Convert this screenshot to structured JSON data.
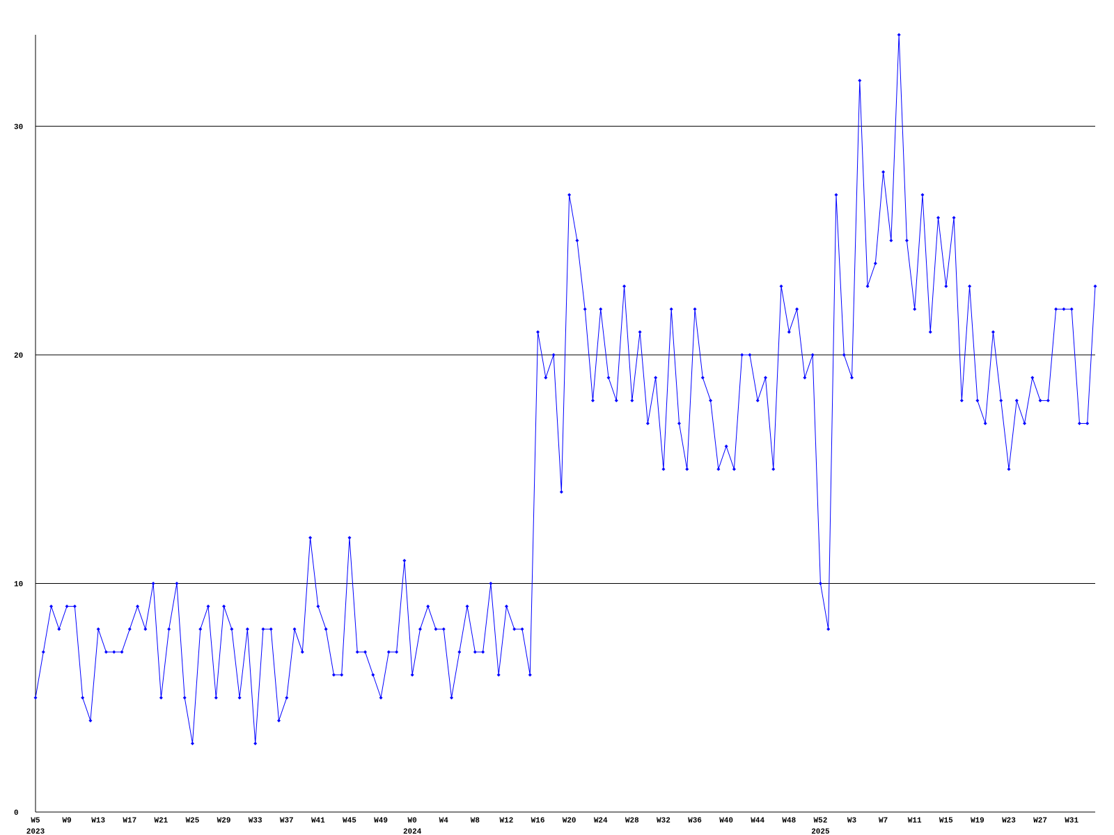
{
  "chart_data": {
    "type": "line",
    "categories": [
      "W5",
      null,
      null,
      null,
      "W9",
      null,
      null,
      null,
      "W13",
      null,
      null,
      null,
      "W17",
      null,
      null,
      null,
      "W21",
      null,
      null,
      null,
      "W25",
      null,
      null,
      null,
      "W29",
      null,
      null,
      null,
      "W33",
      null,
      null,
      null,
      "W37",
      null,
      null,
      null,
      "W41",
      null,
      null,
      null,
      "W45",
      null,
      null,
      null,
      "W49",
      null,
      null,
      null,
      "W0",
      null,
      null,
      null,
      "W4",
      null,
      null,
      null,
      "W8",
      null,
      null,
      null,
      "W12",
      null,
      null,
      null,
      "W16",
      null,
      null,
      null,
      "W20",
      null,
      null,
      null,
      "W24",
      null,
      null,
      null,
      "W28",
      null,
      null,
      null,
      "W32",
      null,
      null,
      null,
      "W36",
      null,
      null,
      null,
      "W40",
      null,
      null,
      null,
      "W44",
      null,
      null,
      null,
      "W48",
      null,
      null,
      null,
      "W52",
      null,
      null,
      null,
      "W3",
      null,
      null,
      null,
      "W7",
      null,
      null,
      null,
      "W11",
      null,
      null,
      null,
      "W15",
      null,
      null,
      null,
      "W19",
      null,
      null,
      null,
      "W23",
      null,
      null,
      null,
      "W27",
      null,
      null,
      null,
      "W31",
      null,
      null,
      null
    ],
    "years": [
      "2023",
      null,
      null,
      null,
      null,
      null,
      null,
      null,
      null,
      null,
      null,
      null,
      null,
      null,
      null,
      null,
      null,
      null,
      null,
      null,
      null,
      null,
      null,
      null,
      null,
      null,
      null,
      null,
      null,
      null,
      null,
      null,
      null,
      null,
      null,
      null,
      null,
      null,
      null,
      null,
      null,
      null,
      null,
      null,
      null,
      null,
      null,
      null,
      "2024",
      null,
      null,
      null,
      null,
      null,
      null,
      null,
      null,
      null,
      null,
      null,
      null,
      null,
      null,
      null,
      null,
      null,
      null,
      null,
      null,
      null,
      null,
      null,
      null,
      null,
      null,
      null,
      null,
      null,
      null,
      null,
      null,
      null,
      null,
      null,
      null,
      null,
      null,
      null,
      null,
      null,
      null,
      null,
      null,
      null,
      null,
      null,
      null,
      null,
      null,
      null,
      "2025",
      null,
      null,
      null,
      null,
      null,
      null,
      null,
      null,
      null,
      null,
      null,
      null,
      null,
      null,
      null,
      null,
      null,
      null,
      null,
      null,
      null,
      null,
      null,
      null,
      null,
      null,
      null,
      null,
      null,
      null,
      null,
      null,
      null,
      null,
      null
    ],
    "series": [
      {
        "color": "#0000ff",
        "values": [
          5,
          7,
          9,
          8,
          9,
          9,
          5,
          4,
          8,
          7,
          7,
          7,
          8,
          9,
          8,
          10,
          5,
          8,
          10,
          5,
          3,
          8,
          9,
          5,
          9,
          8,
          5,
          8,
          3,
          8,
          8,
          4,
          5,
          8,
          7,
          12,
          9,
          8,
          6,
          6,
          12,
          7,
          7,
          6,
          5,
          7,
          7,
          11,
          6,
          8,
          9,
          8,
          8,
          5,
          7,
          9,
          7,
          7,
          10,
          6,
          9,
          8,
          8,
          6,
          21,
          19,
          20,
          14,
          27,
          25,
          22,
          18,
          22,
          19,
          18,
          23,
          18,
          21,
          17,
          19,
          15,
          22,
          17,
          15,
          22,
          19,
          18,
          15,
          16,
          15,
          20,
          20,
          18,
          19,
          15,
          23,
          21,
          22,
          19,
          20,
          10,
          8,
          27,
          20,
          19,
          32,
          23,
          24,
          28,
          25,
          34,
          25,
          22,
          27,
          21,
          26,
          23,
          26,
          18,
          23,
          18,
          17,
          21,
          18,
          15,
          18,
          17,
          19,
          18,
          18,
          22,
          22,
          22,
          17,
          17,
          23
        ]
      }
    ],
    "ylim": [
      0,
      34
    ],
    "yticks": [
      0,
      10,
      20,
      30
    ],
    "grid": true
  }
}
